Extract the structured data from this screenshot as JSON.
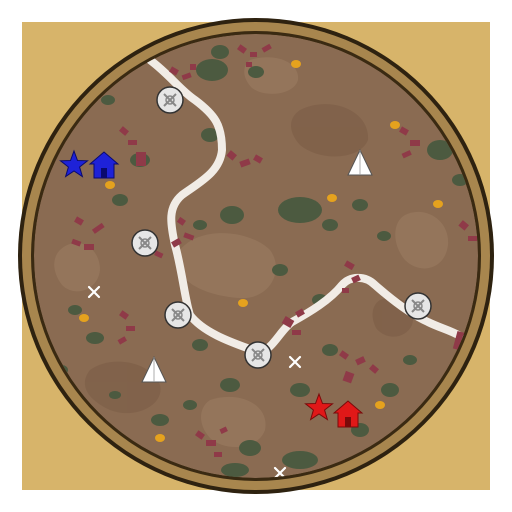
{
  "colors": {
    "frame_gold": "#d7b46a",
    "ring_dark": "#3a2a12",
    "ring_bronze": "#a8864e",
    "terrain": "#8a6b52",
    "terrain_light": "#9d7e63",
    "terrain_dark": "#7a5c45",
    "vegetation": "#4c5a40",
    "road": "#f1ece6",
    "ruins": "#8f3a48",
    "gold_deposit": "#e5a21e",
    "player_blue": "#1e22d8",
    "player_red": "#e01818",
    "neutral_marker": "#ffffff"
  },
  "players": [
    {
      "color": "blue",
      "marker": "star-icon",
      "base": "house-icon"
    },
    {
      "color": "red",
      "marker": "star-icon",
      "base": "house-icon"
    }
  ],
  "icons": {
    "waypoint": "compass-node-icon",
    "tent": "tent-icon",
    "cross": "x-marker-icon",
    "gold": "gold-nugget-icon",
    "ruin": "ruin-block-icon"
  }
}
